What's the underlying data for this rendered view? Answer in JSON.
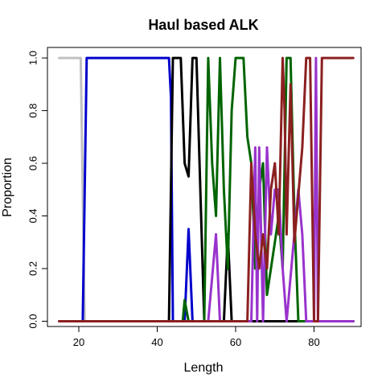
{
  "chart_data": {
    "type": "line",
    "title": "Haul based ALK",
    "xlabel": "Length",
    "ylabel": "Proportion",
    "xlim": [
      12,
      92
    ],
    "ylim": [
      -0.02,
      1.04
    ],
    "xticks": [
      20,
      40,
      60,
      80
    ],
    "yticks": [
      0.0,
      0.2,
      0.4,
      0.6,
      0.8,
      1.0
    ],
    "xtick_labels": [
      "20",
      "40",
      "60",
      "80"
    ],
    "ytick_labels": [
      "0.0",
      "0.2",
      "0.4",
      "0.6",
      "0.8",
      "1.0"
    ],
    "grid": false,
    "legend": "none",
    "series": [
      {
        "color": "#c0c0c0",
        "points": [
          [
            15,
            1
          ],
          [
            20.5,
            1
          ],
          [
            21.5,
            0
          ],
          [
            90,
            0
          ]
        ]
      },
      {
        "color": "#0000cc",
        "points": [
          [
            15,
            0
          ],
          [
            21,
            0
          ],
          [
            22,
            1
          ],
          [
            43,
            1
          ],
          [
            43.5,
            0.85
          ],
          [
            44,
            0
          ],
          [
            47,
            0
          ],
          [
            48,
            0.35
          ],
          [
            49,
            0
          ],
          [
            90,
            0
          ]
        ]
      },
      {
        "color": "#000000",
        "points": [
          [
            15,
            0
          ],
          [
            43,
            0
          ],
          [
            44,
            1
          ],
          [
            46,
            1
          ],
          [
            47,
            0.6
          ],
          [
            48,
            0.55
          ],
          [
            49,
            1
          ],
          [
            50,
            1
          ],
          [
            51,
            0.5
          ],
          [
            52,
            0
          ],
          [
            57,
            0
          ],
          [
            58,
            0.33
          ],
          [
            59,
            0
          ],
          [
            90,
            0
          ]
        ]
      },
      {
        "color": "#006400",
        "points": [
          [
            15,
            0
          ],
          [
            46.5,
            0
          ],
          [
            47,
            0.08
          ],
          [
            48,
            0
          ],
          [
            52,
            0
          ],
          [
            53,
            1
          ],
          [
            54,
            0.6
          ],
          [
            55,
            0.4
          ],
          [
            56,
            1
          ],
          [
            57,
            0.5
          ],
          [
            58,
            0.2
          ],
          [
            59,
            0.8
          ],
          [
            60,
            1
          ],
          [
            62,
            1
          ],
          [
            63,
            0.7
          ],
          [
            64,
            0.6
          ],
          [
            65,
            0.2
          ],
          [
            66,
            0.5
          ],
          [
            67,
            0.6
          ],
          [
            68,
            0.1
          ],
          [
            69,
            0.2
          ],
          [
            70,
            0.3
          ],
          [
            71,
            0.4
          ],
          [
            72,
            0.2
          ],
          [
            73,
            1
          ],
          [
            74,
            1
          ],
          [
            75,
            0.4
          ],
          [
            76,
            0
          ],
          [
            90,
            0
          ]
        ]
      },
      {
        "color": "#9933cc",
        "points": [
          [
            15,
            0
          ],
          [
            53,
            0
          ],
          [
            55,
            0.33
          ],
          [
            56,
            0
          ],
          [
            64,
            0
          ],
          [
            65,
            0.66
          ],
          [
            65.5,
            0
          ],
          [
            66,
            0.66
          ],
          [
            67,
            0
          ],
          [
            68,
            0.66
          ],
          [
            69,
            0.33
          ],
          [
            70,
            0.5
          ],
          [
            71,
            0.5
          ],
          [
            72,
            0.2
          ],
          [
            73,
            0
          ],
          [
            76,
            0.5
          ],
          [
            77,
            0.33
          ],
          [
            78,
            0
          ],
          [
            80,
            0
          ],
          [
            80.5,
            1
          ],
          [
            81,
            0
          ],
          [
            90,
            0
          ]
        ]
      },
      {
        "color": "#8b2020",
        "points": [
          [
            15,
            0
          ],
          [
            63,
            0
          ],
          [
            64,
            0.6
          ],
          [
            65,
            0.33
          ],
          [
            66,
            0.2
          ],
          [
            67,
            0.33
          ],
          [
            68,
            0.2
          ],
          [
            69,
            0.5
          ],
          [
            70,
            0.6
          ],
          [
            71,
            0.33
          ],
          [
            72,
            1
          ],
          [
            72.5,
            0.8
          ],
          [
            73,
            0.33
          ],
          [
            74,
            0.9
          ],
          [
            75,
            0.3
          ],
          [
            77,
            0.66
          ],
          [
            78,
            1
          ],
          [
            79,
            1
          ],
          [
            80,
            0
          ],
          [
            81,
            0
          ],
          [
            82,
            1
          ],
          [
            90,
            1
          ]
        ]
      }
    ]
  }
}
